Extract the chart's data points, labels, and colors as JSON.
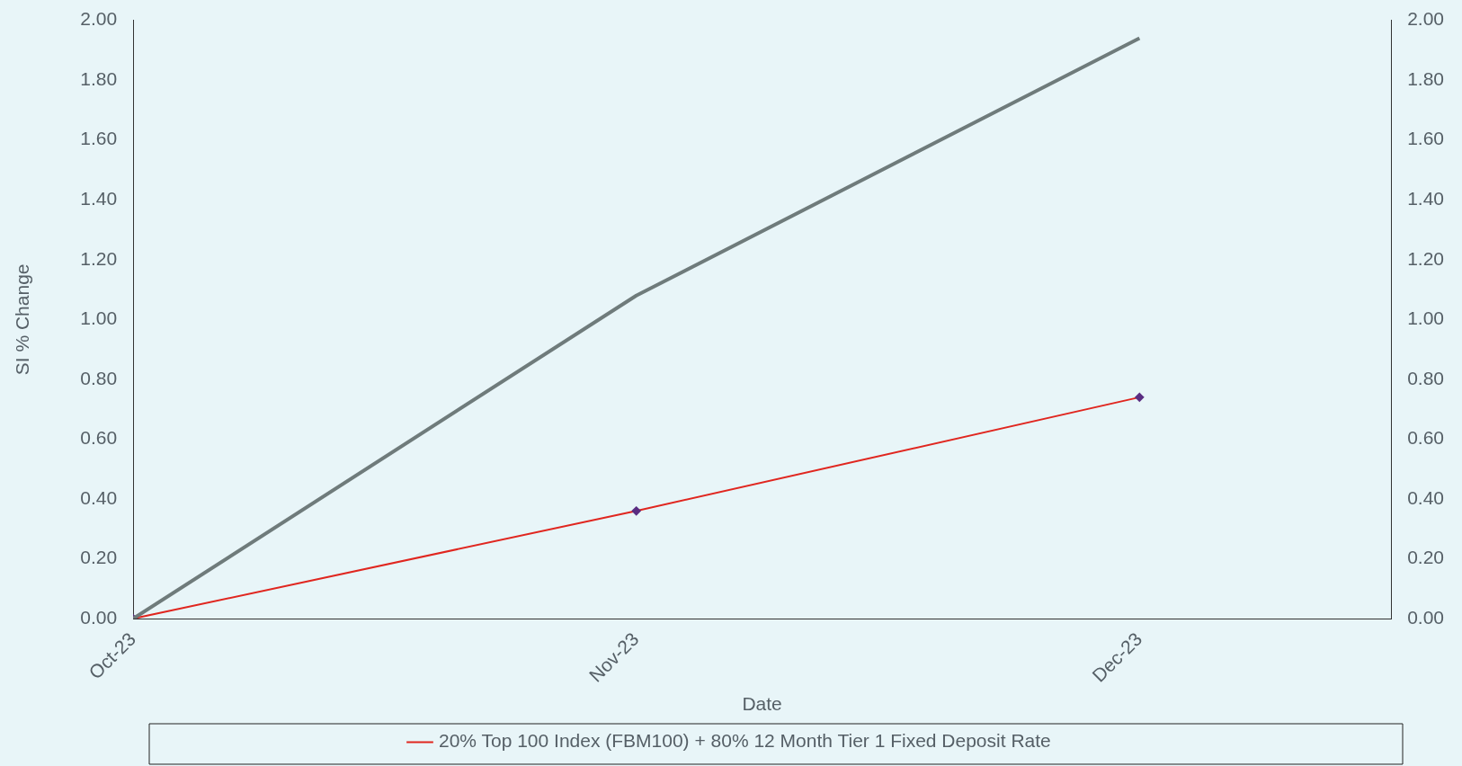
{
  "chart_data": {
    "type": "line",
    "xlabel": "Date",
    "ylabel": "SI % Change",
    "categories": [
      "Oct-23",
      "Nov-23",
      "Dec-23"
    ],
    "series": [
      {
        "color": "#6f7b7b",
        "values": [
          0,
          1.08,
          1.94
        ],
        "marker": "none"
      },
      {
        "name": "20% Top 100 Index (FBM100) + 80% 12 Month Tier 1 Fixed Deposit Rate",
        "color": "#e0261f",
        "values": [
          0,
          0.36,
          0.74
        ],
        "marker": "diamond"
      }
    ],
    "ylim": [
      0,
      2
    ],
    "yticks": [
      {
        "value": 0,
        "label": "0.00"
      },
      {
        "value": 0.2,
        "label": "0.20"
      },
      {
        "value": 0.4,
        "label": "0.40"
      },
      {
        "value": 0.6,
        "label": "0.60"
      },
      {
        "value": 0.8,
        "label": "0.80"
      },
      {
        "value": 1,
        "label": "1.00"
      },
      {
        "value": 1.2,
        "label": "1.20"
      },
      {
        "value": 1.4,
        "label": "1.40"
      },
      {
        "value": 1.6,
        "label": "1.60"
      },
      {
        "value": 1.8,
        "label": "1.80"
      },
      {
        "value": 2,
        "label": "2.00"
      }
    ],
    "y2lim": [
      0,
      2
    ],
    "y2ticks": [
      {
        "value": 0,
        "label": "0.00"
      },
      {
        "value": 0.2,
        "label": "0.20"
      },
      {
        "value": 0.4,
        "label": "0.40"
      },
      {
        "value": 0.6,
        "label": "0.60"
      },
      {
        "value": 0.8,
        "label": "0.80"
      },
      {
        "value": 1,
        "label": "1.00"
      },
      {
        "value": 1.2,
        "label": "1.20"
      },
      {
        "value": 1.4,
        "label": "1.40"
      },
      {
        "value": 1.6,
        "label": "1.60"
      },
      {
        "value": 1.8,
        "label": "1.80"
      },
      {
        "value": 2,
        "label": "2.00"
      }
    ],
    "grid": false,
    "legend": "bottom",
    "line_style": "solid"
  }
}
